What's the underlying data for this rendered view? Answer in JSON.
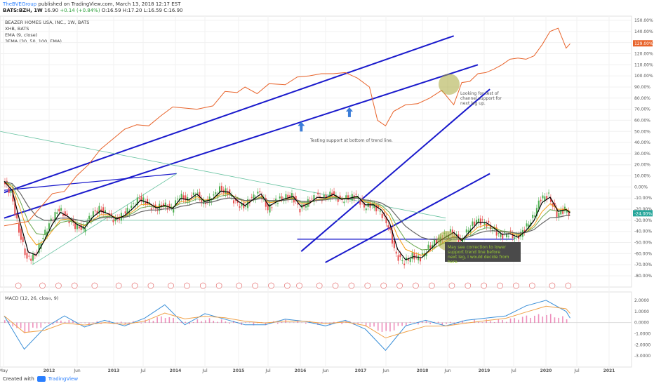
{
  "header": {
    "user": "TheBVEGroup",
    "published": "published on TradingView.com, March 13, 2018 12:17 EST",
    "symbol_line": "BATS:BZH, 1W",
    "price": "16.90",
    "change": "+0.14 (+0.84%)",
    "ohlc": "O:16.59 H:17.20 L:16.59 C:16.90"
  },
  "legend": {
    "title": "BEAZER HOMES USA, INC., 1W, BATS",
    "compare": "XHB, BATS",
    "ema": "EMA (9, close)",
    "ema3": "3EMA (30, 50, 100, EMA)"
  },
  "macd_legend": "MACD (12, 26, close, 9)",
  "footer": {
    "created_with": "Created with",
    "brand": "TradingView"
  },
  "annotations": {
    "support": "Testing support at bottom of trend line.",
    "channel_1": "Looking for test of",
    "channel_2": "channel support for",
    "channel_3": "next leg up.",
    "correction_1": "May see correction to lower",
    "correction_2": "support trend line before",
    "correction_3": "next leg, I would decide from",
    "correction_4": "here."
  },
  "colors": {
    "price_up": "#4caf50",
    "price_down": "#e85050",
    "ema9": "#000000",
    "ema30": "#f39c12",
    "ema50": "#6aa84f",
    "ema100": "#666666",
    "xhb": "#e8632a",
    "trend": "#1a1acc",
    "macd": "#3a8fd8",
    "signal": "#f0a24a",
    "hist_pos": "#e86aa6",
    "hist_neg": "#e86aa6",
    "highlight": "#a8a83a"
  },
  "chart_data": {
    "type": "line",
    "x_axis_labels": [
      "May",
      "2012",
      "Jun",
      "2013",
      "Jul",
      "2014",
      "Jul",
      "2015",
      "Jul",
      "2016",
      "Jun",
      "2017",
      "Jun",
      "2018",
      "Jun",
      "2019",
      "Jul",
      "2020",
      "Jul",
      "2021"
    ],
    "y_axis_percent_labels": [
      "150.00%",
      "140.00%",
      "130.00%",
      "120.00%",
      "110.00%",
      "100.00%",
      "90.00%",
      "80.00%",
      "70.00%",
      "60.00%",
      "50.00%",
      "40.00%",
      "30.00%",
      "20.00%",
      "10.00%",
      "0.00%",
      "-10.00%",
      "-20.00%",
      "-30.00%",
      "-40.00%",
      "-50.00%",
      "-60.00%",
      "-70.00%",
      "-80.00%"
    ],
    "ylim_percent": [
      -80,
      150
    ],
    "series": [
      {
        "name": "XHB, BATS",
        "x": [
          0,
          12,
          24,
          30,
          36,
          42,
          48,
          56,
          60,
          66,
          72,
          78,
          84,
          90,
          96,
          104,
          110,
          116,
          120,
          126,
          132,
          140,
          146,
          152,
          158,
          164,
          170,
          176,
          182,
          186,
          190,
          194,
          200,
          206,
          212,
          218,
          224,
          228,
          232,
          236,
          240,
          244,
          248,
          252,
          256,
          260,
          264,
          268,
          272,
          276,
          280,
          282
        ],
        "values": [
          -35,
          -31,
          -6,
          -4,
          10,
          20,
          34,
          46,
          52,
          56,
          55,
          64,
          72,
          71,
          70,
          73,
          86,
          85,
          90,
          84,
          93,
          92,
          99,
          100,
          102,
          102,
          103,
          98,
          90,
          60,
          55,
          68,
          74,
          75,
          80,
          87,
          74,
          94,
          95,
          102,
          103,
          106,
          110,
          115,
          116,
          115,
          118,
          128,
          140,
          143,
          125,
          129
        ]
      },
      {
        "name": "BEAZER HOMES USA, INC., 1W, BATS",
        "x": [
          0,
          4,
          8,
          12,
          16,
          20,
          24,
          28,
          32,
          36,
          40,
          44,
          48,
          52,
          56,
          60,
          64,
          68,
          72,
          76,
          80,
          84,
          88,
          92,
          96,
          100,
          104,
          108,
          112,
          116,
          120,
          124,
          128,
          132,
          136,
          140,
          144,
          148,
          152,
          156,
          160,
          164,
          168,
          172,
          176,
          180,
          184,
          188,
          192,
          196,
          200,
          204,
          208,
          212,
          216,
          220,
          224,
          228,
          232,
          236,
          240,
          244,
          248,
          252,
          256,
          260,
          264,
          268,
          272,
          276,
          280,
          282
        ],
        "values": [
          5,
          -5,
          -40,
          -65,
          -62,
          -45,
          -30,
          -20,
          -28,
          -35,
          -38,
          -25,
          -20,
          -25,
          -30,
          -25,
          -18,
          -10,
          -15,
          -20,
          -16,
          -20,
          -8,
          -12,
          -5,
          -15,
          -10,
          -2,
          -5,
          -14,
          -18,
          -10,
          -5,
          -20,
          -12,
          -10,
          -8,
          -20,
          -14,
          -8,
          -10,
          -6,
          -12,
          -10,
          -8,
          -18,
          -16,
          -22,
          -35,
          -62,
          -68,
          -62,
          -64,
          -55,
          -48,
          -44,
          -40,
          -50,
          -38,
          -30,
          -32,
          -38,
          -44,
          -42,
          -46,
          -38,
          -28,
          -10,
          -8,
          -25,
          -20,
          -24
        ]
      },
      {
        "name": "MACD (12, 26, close, 9)",
        "x": [
          0,
          10,
          20,
          30,
          40,
          50,
          60,
          70,
          80,
          90,
          100,
          110,
          120,
          130,
          140,
          150,
          160,
          170,
          180,
          190,
          200,
          210,
          220,
          230,
          240,
          250,
          260,
          270,
          280,
          282
        ],
        "values": [
          0.6,
          -2.4,
          -0.5,
          0.6,
          -0.4,
          0.2,
          -0.3,
          0.4,
          1.6,
          -0.2,
          0.8,
          0.3,
          -0.2,
          -0.2,
          0.3,
          0.1,
          -0.3,
          0.2,
          -0.6,
          -2.5,
          -0.3,
          0.2,
          -0.3,
          0.2,
          0.4,
          0.6,
          1.5,
          2.0,
          1.0,
          0.4
        ]
      }
    ],
    "macd_ylim": [
      -3.5,
      2.5
    ],
    "macd_ticks": [
      "2.0000",
      "1.0000",
      "0.0000",
      "-1.0000",
      "-2.0000",
      "-3.0000"
    ]
  }
}
